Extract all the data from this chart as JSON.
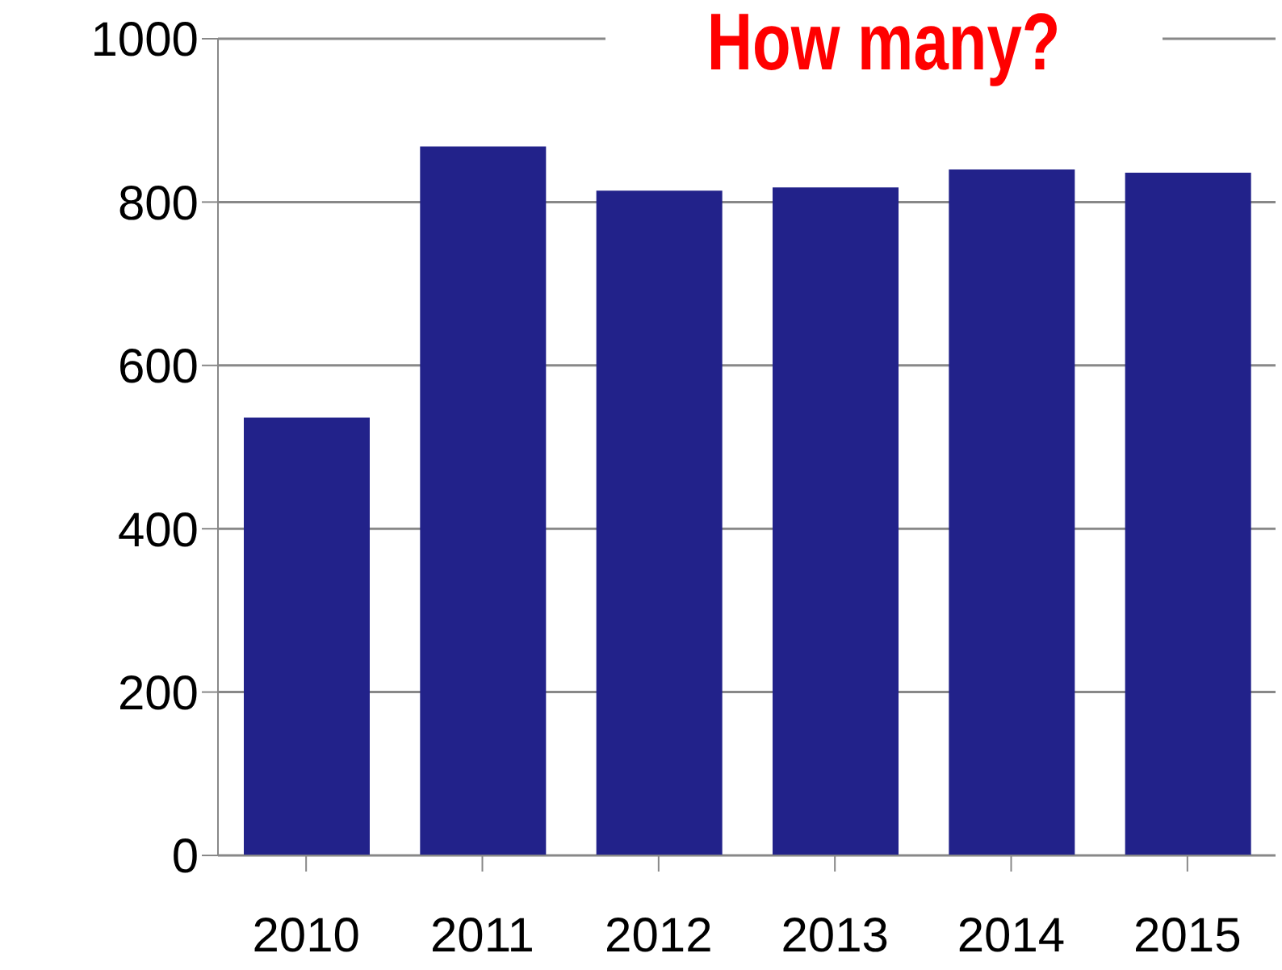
{
  "chart_data": {
    "type": "bar",
    "title": "How many?",
    "categories": [
      "2010",
      "2011",
      "2012",
      "2013",
      "2014",
      "2015"
    ],
    "values": [
      536,
      868,
      814,
      818,
      840,
      836
    ],
    "color": "#22228a",
    "ylim": [
      0,
      1000
    ],
    "yticks": [
      0,
      200,
      400,
      600,
      800,
      1000
    ],
    "grid": "y"
  }
}
